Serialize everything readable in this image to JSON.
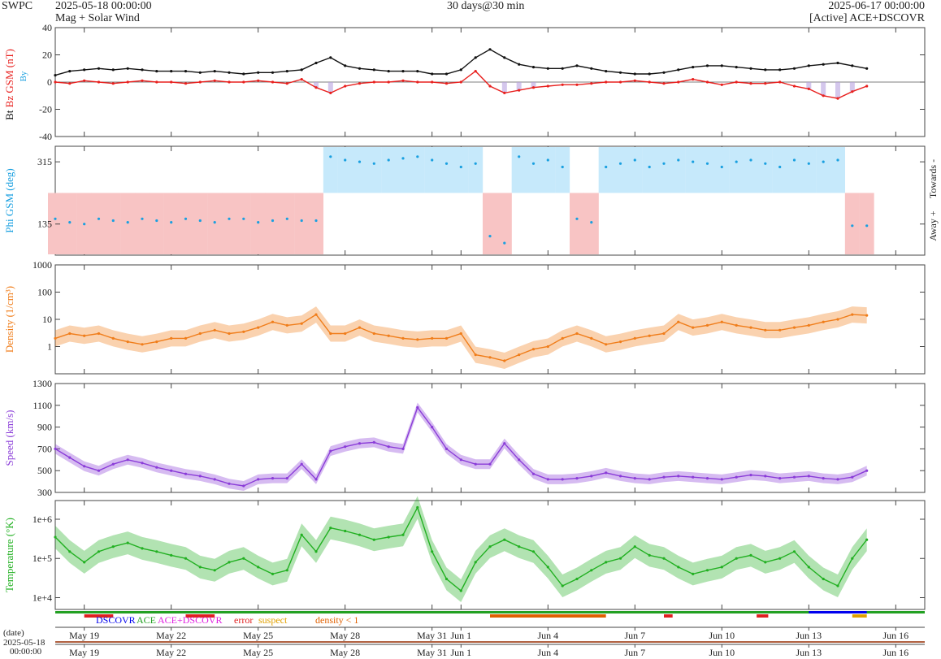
{
  "header": {
    "brand": "SWPC",
    "start": "2025-05-18 00:00:00",
    "subtitle": "Mag + Solar Wind",
    "span": "30 days@30 min",
    "end": "2025-06-17 00:00:00",
    "source": "[Active] ACE+DSCOVR"
  },
  "date_label": "(date)",
  "date_start": "2025-05-18",
  "date_start_time": "00:00:00",
  "legend": {
    "dscovr": "DSCOVR",
    "ace": "ACE",
    "ace_dscovr": "ACE+DSCOVR",
    "error": "error",
    "suspect": "suspect",
    "density": "density < 1"
  },
  "colors": {
    "bt": "#111111",
    "bz": "#e8201e",
    "by": "#1aa0e0",
    "bz_fill": "#b8a2e0",
    "phi": "#1aa0e0",
    "towards": "#c6e9fb",
    "away": "#f8c4c4",
    "density": "#f07d1a",
    "speed": "#8a3cd8",
    "temperature": "#22b022",
    "dscovr": "#0000ee",
    "ace": "#22a022",
    "ace_dscovr": "#e020e0",
    "error": "#e02020",
    "suspect": "#e0a000",
    "density_flag": "#e06000"
  },
  "chart_data": [
    {
      "type": "line",
      "title": "",
      "xlabel": "",
      "ylabel": [
        "Bt",
        "Bz GSM (nT)",
        "By"
      ],
      "ylim": [
        -40,
        40
      ],
      "yticks": [
        "40",
        "20",
        "0",
        "-20",
        "-40"
      ],
      "x_days": [
        0,
        0.5,
        1,
        1.5,
        2,
        2.5,
        3,
        3.5,
        4,
        4.5,
        5,
        5.5,
        6,
        6.5,
        7,
        7.5,
        8,
        8.5,
        9,
        9.5,
        10,
        10.5,
        11,
        11.5,
        12,
        12.5,
        13,
        13.5,
        14,
        14.5,
        15,
        15.5,
        16,
        16.5,
        17,
        17.5,
        18,
        18.5,
        19,
        19.5,
        20,
        20.5,
        21,
        21.5,
        22,
        22.5,
        23,
        23.5,
        24,
        24.5,
        25,
        25.5,
        26,
        26.5,
        27,
        27.5,
        28
      ],
      "series": [
        {
          "name": "Bt",
          "values": [
            5,
            8,
            9,
            10,
            9,
            10,
            9,
            8,
            8,
            8,
            7,
            8,
            7,
            6,
            7,
            7,
            8,
            9,
            14,
            18,
            12,
            10,
            9,
            8,
            8,
            8,
            6,
            6,
            9,
            18,
            24,
            18,
            13,
            11,
            10,
            10,
            12,
            10,
            8,
            7,
            6,
            6,
            7,
            9,
            11,
            12,
            12,
            11,
            10,
            9,
            9,
            10,
            12,
            13,
            14,
            12,
            10
          ]
        },
        {
          "name": "Bz",
          "values": [
            0,
            -1,
            1,
            0,
            -1,
            0,
            1,
            0,
            0,
            -1,
            0,
            1,
            0,
            0,
            1,
            0,
            -1,
            2,
            -4,
            -8,
            -3,
            -1,
            0,
            0,
            1,
            0,
            0,
            -1,
            0,
            8,
            -3,
            -8,
            -6,
            -4,
            -3,
            -2,
            -2,
            -1,
            0,
            0,
            1,
            0,
            -1,
            0,
            2,
            0,
            -2,
            0,
            -1,
            -1,
            0,
            -3,
            -5,
            -10,
            -12,
            -7,
            -3
          ]
        }
      ]
    },
    {
      "type": "scatter",
      "title": "",
      "xlabel": "",
      "ylabel": "Phi GSM (deg)",
      "ylim": [
        45,
        360
      ],
      "yticks": [
        "315",
        "135"
      ],
      "right_labels": [
        "Towards -",
        "Away +"
      ],
      "x_days": [
        0,
        0.5,
        1,
        1.5,
        2,
        2.5,
        3,
        3.5,
        4,
        4.5,
        5,
        5.5,
        6,
        6.5,
        7,
        7.5,
        8,
        8.5,
        9,
        9.5,
        10,
        10.5,
        11,
        11.5,
        12,
        12.5,
        13,
        13.5,
        14,
        14.5,
        15,
        15.5,
        16,
        16.5,
        17,
        17.5,
        18,
        18.5,
        19,
        19.5,
        20,
        20.5,
        21,
        21.5,
        22,
        22.5,
        23,
        23.5,
        24,
        24.5,
        25,
        25.5,
        26,
        26.5,
        27,
        27.5,
        28
      ],
      "values": [
        150,
        140,
        135,
        150,
        145,
        140,
        150,
        145,
        140,
        150,
        145,
        140,
        150,
        150,
        140,
        145,
        150,
        145,
        145,
        330,
        320,
        315,
        310,
        320,
        325,
        330,
        320,
        310,
        300,
        310,
        100,
        80,
        330,
        310,
        320,
        300,
        150,
        140,
        300,
        310,
        320,
        300,
        310,
        320,
        315,
        310,
        300,
        315,
        320,
        310,
        300,
        320,
        310,
        315,
        320,
        130,
        130
      ]
    },
    {
      "type": "line",
      "title": "",
      "xlabel": "",
      "ylabel": "Density (1/cm³)",
      "ylim": [
        0.1,
        1000
      ],
      "log": true,
      "yticks": [
        "1000",
        "100",
        "10",
        "1"
      ],
      "x_days": [
        0,
        0.5,
        1,
        1.5,
        2,
        2.5,
        3,
        3.5,
        4,
        4.5,
        5,
        5.5,
        6,
        6.5,
        7,
        7.5,
        8,
        8.5,
        9,
        9.5,
        10,
        10.5,
        11,
        11.5,
        12,
        12.5,
        13,
        13.5,
        14,
        14.5,
        15,
        15.5,
        16,
        16.5,
        17,
        17.5,
        18,
        18.5,
        19,
        19.5,
        20,
        20.5,
        21,
        21.5,
        22,
        22.5,
        23,
        23.5,
        24,
        24.5,
        25,
        25.5,
        26,
        26.5,
        27,
        27.5,
        28
      ],
      "values": [
        2,
        3,
        2.5,
        3,
        2,
        1.5,
        1.2,
        1.5,
        2,
        2,
        3,
        4,
        3,
        3.5,
        5,
        8,
        6,
        7,
        15,
        3,
        3,
        5,
        3,
        2.5,
        2,
        1.8,
        2,
        2,
        3,
        0.5,
        0.4,
        0.3,
        0.5,
        0.8,
        1,
        2,
        3,
        2,
        1.2,
        1.5,
        2,
        2.5,
        3,
        8,
        5,
        6,
        8,
        6,
        5,
        4,
        4,
        5,
        6,
        8,
        10,
        15,
        14
      ]
    },
    {
      "type": "line",
      "title": "",
      "xlabel": "",
      "ylabel": "Speed (km/s)",
      "ylim": [
        300,
        1300
      ],
      "yticks": [
        "1300",
        "1100",
        "900",
        "700",
        "500",
        "300"
      ],
      "x_days": [
        0,
        0.5,
        1,
        1.5,
        2,
        2.5,
        3,
        3.5,
        4,
        4.5,
        5,
        5.5,
        6,
        6.5,
        7,
        7.5,
        8,
        8.5,
        9,
        9.5,
        10,
        10.5,
        11,
        11.5,
        12,
        12.5,
        13,
        13.5,
        14,
        14.5,
        15,
        15.5,
        16,
        16.5,
        17,
        17.5,
        18,
        18.5,
        19,
        19.5,
        20,
        20.5,
        21,
        21.5,
        22,
        22.5,
        23,
        23.5,
        24,
        24.5,
        25,
        25.5,
        26,
        26.5,
        27,
        27.5,
        28
      ],
      "values": [
        700,
        620,
        540,
        500,
        560,
        600,
        570,
        530,
        500,
        470,
        450,
        420,
        380,
        360,
        420,
        430,
        430,
        560,
        420,
        680,
        720,
        750,
        760,
        720,
        700,
        1080,
        900,
        700,
        600,
        560,
        560,
        750,
        600,
        470,
        420,
        420,
        430,
        450,
        480,
        450,
        430,
        420,
        440,
        450,
        440,
        430,
        420,
        440,
        460,
        450,
        430,
        440,
        450,
        430,
        420,
        440,
        500
      ]
    },
    {
      "type": "line",
      "title": "",
      "xlabel": "",
      "ylabel": "Temperature (°K)",
      "ylim": [
        5000,
        3000000
      ],
      "log": true,
      "yticks": [
        "1e+6",
        "1e+5",
        "1e+4"
      ],
      "x_days": [
        0,
        0.5,
        1,
        1.5,
        2,
        2.5,
        3,
        3.5,
        4,
        4.5,
        5,
        5.5,
        6,
        6.5,
        7,
        7.5,
        8,
        8.5,
        9,
        9.5,
        10,
        10.5,
        11,
        11.5,
        12,
        12.5,
        13,
        13.5,
        14,
        14.5,
        15,
        15.5,
        16,
        16.5,
        17,
        17.5,
        18,
        18.5,
        19,
        19.5,
        20,
        20.5,
        21,
        21.5,
        22,
        22.5,
        23,
        23.5,
        24,
        24.5,
        25,
        25.5,
        26,
        26.5,
        27,
        27.5,
        28
      ],
      "values": [
        350000,
        150000,
        80000,
        150000,
        200000,
        250000,
        180000,
        150000,
        120000,
        100000,
        60000,
        50000,
        80000,
        100000,
        60000,
        40000,
        50000,
        400000,
        150000,
        600000,
        500000,
        400000,
        300000,
        350000,
        400000,
        2000000,
        150000,
        30000,
        15000,
        80000,
        200000,
        300000,
        200000,
        150000,
        60000,
        20000,
        30000,
        50000,
        80000,
        100000,
        200000,
        120000,
        100000,
        60000,
        40000,
        50000,
        60000,
        100000,
        120000,
        80000,
        100000,
        150000,
        60000,
        30000,
        20000,
        100000,
        300000
      ]
    }
  ],
  "x_axis": {
    "ticks": [
      "May 19",
      "May 22",
      "May 25",
      "May 28",
      "May 31",
      "Jun 1",
      "Jun 4",
      "Jun 7",
      "Jun 10",
      "Jun 13",
      "Jun 16"
    ],
    "tick_days": [
      1,
      4,
      7,
      10,
      13,
      14,
      17,
      20,
      23,
      26,
      29
    ]
  }
}
